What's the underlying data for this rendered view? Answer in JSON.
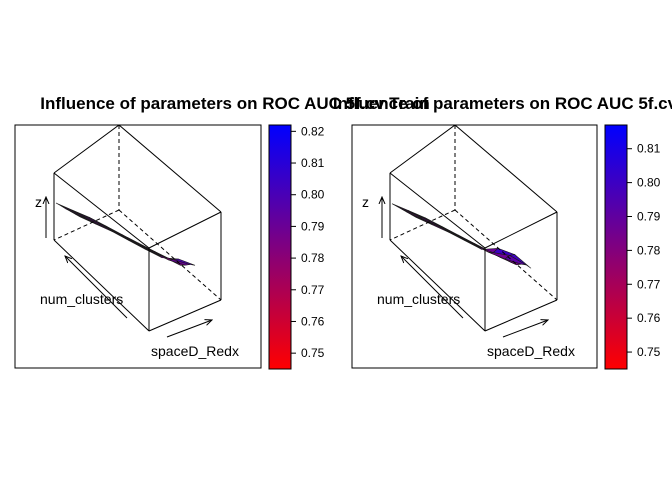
{
  "chart_data": [
    {
      "type": "surface3d",
      "title": "Influence of parameters on ROC AUC 5f.cv Train",
      "xlabel": "spaceD_Redx",
      "ylabel": "num_clusters",
      "zlabel": "z",
      "colorbar": {
        "min": 0.745,
        "max": 0.822,
        "ticks": [
          "0.75",
          "0.76",
          "0.77",
          "0.78",
          "0.79",
          "0.80",
          "0.81",
          "0.82"
        ],
        "low_color": "#FF0000",
        "high_color": "#0000FF"
      },
      "grid_rows": 6,
      "grid_cols": 8,
      "z": [
        [
          0.79,
          0.792,
          0.795,
          0.793,
          0.79,
          0.788,
          0.786,
          0.785
        ],
        [
          0.789,
          0.791,
          0.794,
          0.791,
          0.788,
          0.786,
          0.784,
          0.783
        ],
        [
          0.787,
          0.79,
          0.792,
          0.789,
          0.786,
          0.784,
          0.783,
          0.782
        ],
        [
          0.786,
          0.788,
          0.79,
          0.787,
          0.784,
          0.782,
          0.781,
          0.79
        ],
        [
          0.785,
          0.786,
          0.788,
          0.785,
          0.782,
          0.78,
          0.79,
          0.8
        ],
        [
          0.784,
          0.785,
          0.786,
          0.783,
          0.78,
          0.779,
          0.8,
          0.805
        ]
      ]
    },
    {
      "type": "surface3d",
      "title": "Influence of parameters on ROC AUC 5f.cv",
      "xlabel": "spaceD_Redx",
      "ylabel": "num_clusters",
      "zlabel": "z",
      "colorbar": {
        "min": 0.745,
        "max": 0.817,
        "ticks": [
          "0.75",
          "0.76",
          "0.77",
          "0.78",
          "0.79",
          "0.80",
          "0.81"
        ],
        "low_color": "#FF0000",
        "high_color": "#0000FF"
      },
      "grid_rows": 6,
      "grid_cols": 8,
      "z": [
        [
          0.785,
          0.788,
          0.79,
          0.788,
          0.786,
          0.784,
          0.782,
          0.781
        ],
        [
          0.784,
          0.787,
          0.789,
          0.787,
          0.785,
          0.783,
          0.781,
          0.78
        ],
        [
          0.783,
          0.786,
          0.788,
          0.786,
          0.783,
          0.781,
          0.78,
          0.781
        ],
        [
          0.782,
          0.784,
          0.786,
          0.784,
          0.781,
          0.779,
          0.782,
          0.79
        ],
        [
          0.781,
          0.783,
          0.784,
          0.782,
          0.78,
          0.785,
          0.8,
          0.795
        ],
        [
          0.78,
          0.781,
          0.782,
          0.78,
          0.778,
          0.805,
          0.81,
          0.792
        ]
      ]
    }
  ]
}
